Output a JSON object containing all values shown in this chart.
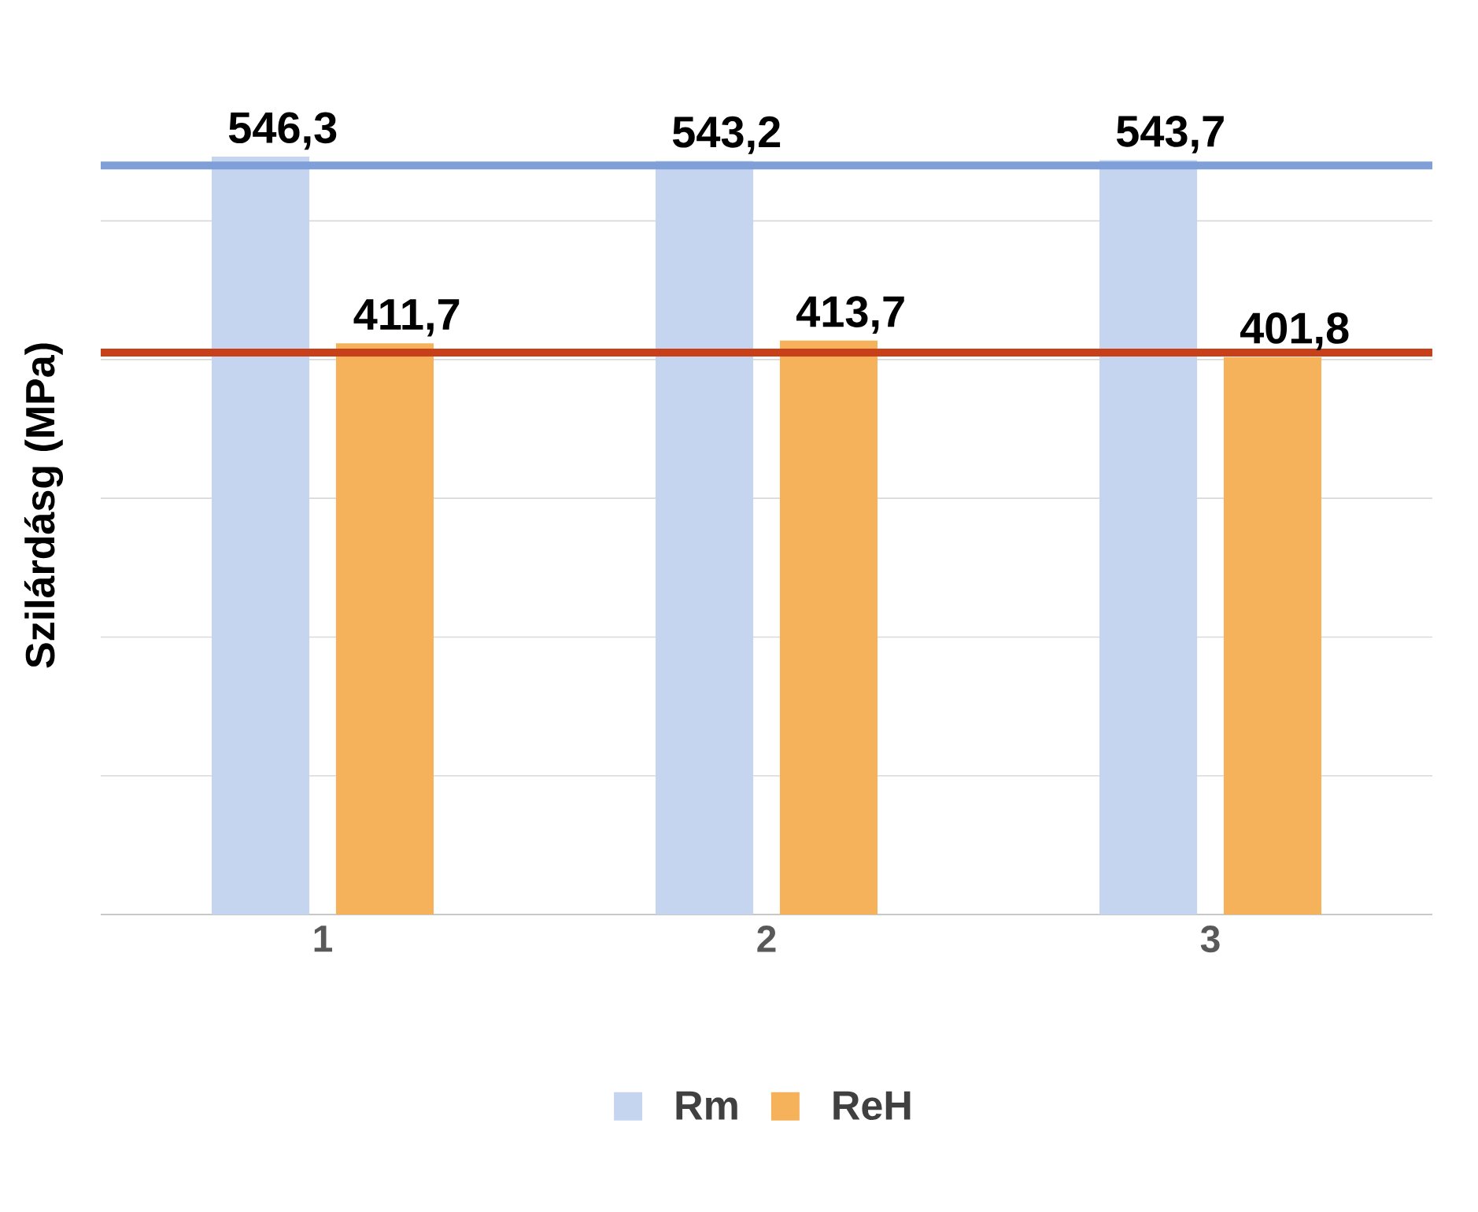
{
  "chart_data": {
    "type": "bar",
    "ylabel": "Szilárdásg (MPa)",
    "categories": [
      "1",
      "2",
      "3"
    ],
    "series": [
      {
        "name": "Rm",
        "color": "#c5d5f0",
        "values": [
          546.3,
          543.2,
          543.7
        ],
        "value_labels": [
          "546,3",
          "543,2",
          "543,7"
        ]
      },
      {
        "name": "ReH",
        "color": "#f5b25a",
        "values": [
          411.7,
          413.7,
          401.8
        ],
        "value_labels": [
          "411,7",
          "413,7",
          "401,8"
        ]
      }
    ],
    "tick_labels": "x",
    "grid": "y",
    "legend": "bottom",
    "ref_lines": [
      {
        "axis": "y",
        "value": 540,
        "color": "#7f9fd8"
      },
      {
        "axis": "y",
        "value": 405,
        "color": "#c8401a"
      }
    ]
  }
}
